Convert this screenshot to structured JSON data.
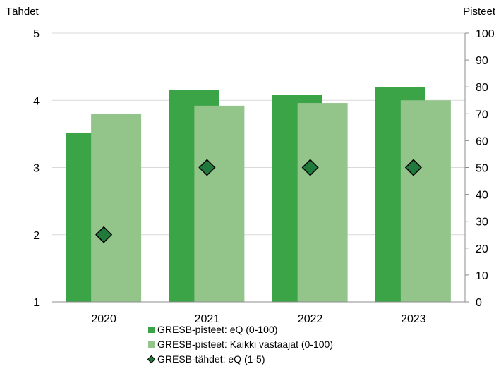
{
  "chart_data": {
    "type": "bar",
    "categories": [
      "2020",
      "2021",
      "2022",
      "2023"
    ],
    "left_axis": {
      "label": "Tähdet",
      "min": 1,
      "max": 5,
      "ticks": [
        "1",
        "2",
        "3",
        "4",
        "5"
      ]
    },
    "right_axis": {
      "label": "Pisteet",
      "min": 0,
      "max": 100,
      "ticks": [
        "0",
        "10",
        "20",
        "30",
        "40",
        "50",
        "60",
        "70",
        "80",
        "90",
        "100"
      ]
    },
    "series": [
      {
        "name": "GRESB-pisteet: eQ (0-100)",
        "kind": "bar",
        "axis": "right",
        "color": "#3aa447",
        "values": [
          63,
          79,
          77,
          80
        ]
      },
      {
        "name": "GRESB-pisteet: Kaikki vastaajat (0-100)",
        "kind": "bar",
        "axis": "right",
        "color": "#93c48a",
        "values": [
          70,
          73,
          74,
          75
        ]
      },
      {
        "name": "GRESB-tähdet: eQ (1-5)",
        "kind": "marker",
        "axis": "left",
        "color": "#1f7a3c",
        "values": [
          2,
          3,
          3,
          3
        ]
      }
    ],
    "grid": true,
    "legend_position": "bottom"
  }
}
